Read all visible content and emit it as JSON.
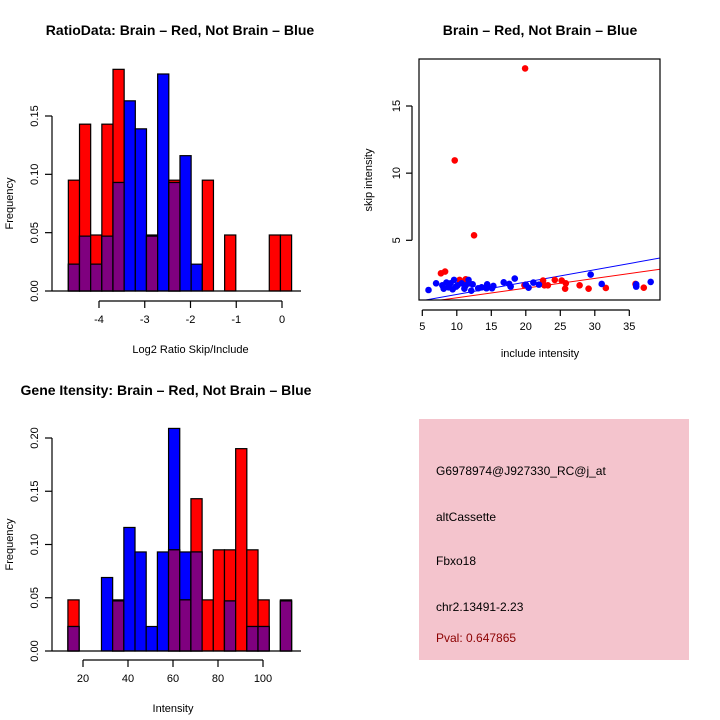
{
  "colors": {
    "brain": "#ff0000",
    "not_brain": "#0000ff",
    "overlap": "#7f007f",
    "info_bg": "#f4c4cd",
    "pval": "#8b0000"
  },
  "chart_data": [
    {
      "type": "bar",
      "title": "RatioData: Brain – Red, Not Brain – Blue",
      "xlabel": "Log2 Ratio Skip/Include",
      "ylabel": "Frequency",
      "xticks": [
        "-4",
        "-3",
        "-2",
        "-1",
        "0"
      ],
      "xtick_values": [
        -4,
        -3,
        -2,
        -1,
        0
      ],
      "yticks": [
        "0.00",
        "0.05",
        "0.10",
        "0.15"
      ],
      "ytick_values": [
        0,
        0.05,
        0.1,
        0.15
      ],
      "bin_start": -4.67,
      "bin_width": 0.244,
      "series": [
        {
          "name": "Brain",
          "color": "red",
          "values": [
            0.095,
            0.143,
            0.048,
            0.143,
            0.19,
            0,
            0,
            0.048,
            0,
            0.095,
            0,
            0,
            0.095,
            0,
            0.048,
            0,
            0,
            0,
            0.048,
            0.048
          ]
        },
        {
          "name": "Not Brain",
          "color": "blue",
          "values": [
            0.023,
            0.047,
            0.023,
            0.047,
            0.093,
            0.163,
            0.139,
            0.047,
            0.186,
            0.093,
            0.116,
            0.023,
            0,
            0,
            0,
            0,
            0,
            0,
            0,
            0
          ]
        }
      ]
    },
    {
      "type": "scatter",
      "title": "Brain – Red, Not Brain – Blue",
      "xlabel": "include intensity",
      "ylabel": "skip intensity",
      "xlim": [
        4.6,
        39.5
      ],
      "ylim": [
        0.56,
        18.5
      ],
      "xticks": [
        "5",
        "10",
        "15",
        "20",
        "25",
        "30",
        "35"
      ],
      "xtick_values": [
        5,
        10,
        15,
        20,
        25,
        30,
        35
      ],
      "yticks": [
        "5",
        "10",
        "15"
      ],
      "ytick_values": [
        5,
        10,
        15
      ],
      "series": [
        {
          "name": "Brain",
          "color": "red",
          "points": [
            [
              19.9,
              17.8
            ],
            [
              9.7,
              10.95
            ],
            [
              12.5,
              5.37
            ],
            [
              7.7,
              2.54
            ],
            [
              8.3,
              2.67
            ],
            [
              10.4,
              2.05
            ],
            [
              11.3,
              2.1
            ],
            [
              19.8,
              1.65
            ],
            [
              22.5,
              2.0
            ],
            [
              22.7,
              1.65
            ],
            [
              23.2,
              1.65
            ],
            [
              24.2,
              2.05
            ],
            [
              25.2,
              2.0
            ],
            [
              25.7,
              1.4
            ],
            [
              25.8,
              1.8
            ],
            [
              27.8,
              1.65
            ],
            [
              29.1,
              1.4
            ],
            [
              31.6,
              1.45
            ],
            [
              35.9,
              1.75
            ],
            [
              37.1,
              1.47
            ]
          ],
          "fit": {
            "slope": 0.072,
            "intercept": 0.0
          }
        },
        {
          "name": "Not Brain",
          "color": "blue",
          "points": [
            [
              29.4,
              2.45
            ],
            [
              31.0,
              1.75
            ],
            [
              36.0,
              1.72
            ],
            [
              36.0,
              1.55
            ],
            [
              38.1,
              1.9
            ],
            [
              20.4,
              1.47
            ],
            [
              20.0,
              1.7
            ],
            [
              21.1,
              1.85
            ],
            [
              21.9,
              1.7
            ],
            [
              18.4,
              2.15
            ],
            [
              17.8,
              1.55
            ],
            [
              17.6,
              1.75
            ],
            [
              16.8,
              1.87
            ],
            [
              15.3,
              1.6
            ],
            [
              15.1,
              1.43
            ],
            [
              14.4,
              1.72
            ],
            [
              14.3,
              1.43
            ],
            [
              13.6,
              1.5
            ],
            [
              13.1,
              1.43
            ],
            [
              12.3,
              1.72
            ],
            [
              12.1,
              1.25
            ],
            [
              11.7,
              2.05
            ],
            [
              11.8,
              1.8
            ],
            [
              11.1,
              1.4
            ],
            [
              10.7,
              1.8
            ],
            [
              10.1,
              1.65
            ],
            [
              9.6,
              2.05
            ],
            [
              9.4,
              1.35
            ],
            [
              9.1,
              1.8
            ],
            [
              8.8,
              1.5
            ],
            [
              8.5,
              1.85
            ],
            [
              8.1,
              1.4
            ],
            [
              7.9,
              1.65
            ],
            [
              7.0,
              1.8
            ],
            [
              5.9,
              1.3
            ],
            [
              9.9,
              1.55
            ],
            [
              11.3,
              1.65
            ]
          ],
          "fit": {
            "slope": 0.092,
            "intercept": 0.05
          }
        }
      ]
    },
    {
      "type": "bar",
      "title": "Gene Itensity: Brain – Red, Not Brain – Blue",
      "xlabel": "Intensity",
      "ylabel": "Frequency",
      "xticks": [
        "20",
        "40",
        "60",
        "80",
        "100"
      ],
      "xtick_values": [
        20,
        40,
        60,
        80,
        100
      ],
      "yticks": [
        "0.00",
        "0.05",
        "0.10",
        "0.15",
        "0.20"
      ],
      "ytick_values": [
        0,
        0.05,
        0.1,
        0.15,
        0.2
      ],
      "bin_start": 13.3,
      "bin_width": 4.97,
      "series": [
        {
          "name": "Brain",
          "color": "red",
          "values": [
            0.048,
            0,
            0,
            0,
            0.048,
            0,
            0,
            0,
            0,
            0.095,
            0.048,
            0.143,
            0.048,
            0.095,
            0.095,
            0.19,
            0.095,
            0.048,
            0,
            0.048
          ]
        },
        {
          "name": "Not Brain",
          "color": "blue",
          "values": [
            0.023,
            0,
            0,
            0.069,
            0.047,
            0.116,
            0.093,
            0.023,
            0.093,
            0.209,
            0.093,
            0.093,
            0,
            0,
            0.047,
            0,
            0.023,
            0.023,
            0,
            0.047
          ]
        }
      ]
    }
  ],
  "info_panel": {
    "probe_id": "G6978974@J927330_RC@j_at",
    "event_type": "altCassette",
    "gene": "Fbxo18",
    "location": "chr2.13491-2.23",
    "pval": "Pval: 0.647865"
  }
}
